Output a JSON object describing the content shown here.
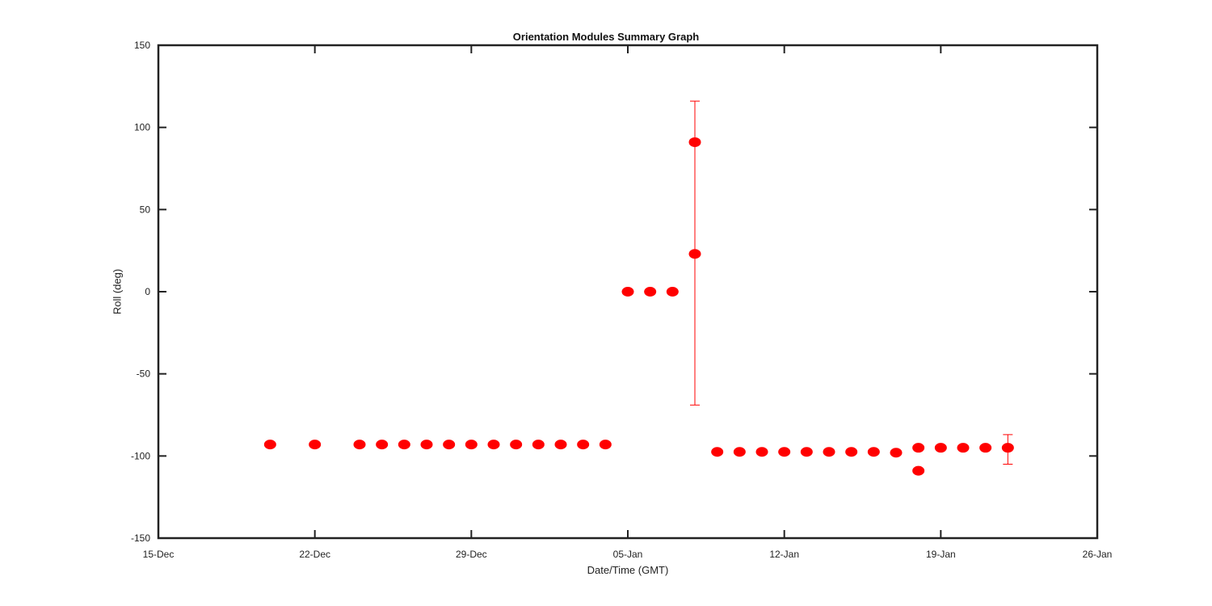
{
  "chart_data": {
    "type": "scatter",
    "title": "Orientation Modules Summary Graph",
    "xlabel": "Date/Time (GMT)",
    "ylabel": "Roll (deg)",
    "x_ticks": [
      "15-Dec",
      "22-Dec",
      "29-Dec",
      "05-Jan",
      "12-Jan",
      "19-Jan",
      "26-Jan"
    ],
    "x_range": [
      "15-Dec",
      "26-Jan"
    ],
    "y_ticks": [
      "150",
      "100",
      "50",
      "0",
      "-50",
      "-100",
      "-150"
    ],
    "ylim": [
      -150,
      150
    ],
    "grid": false,
    "marker_color": "#ff0000",
    "series": [
      {
        "x": [
          "20-Dec",
          "22-Dec",
          "24-Dec",
          "25-Dec",
          "26-Dec",
          "27-Dec",
          "28-Dec",
          "29-Dec",
          "30-Dec",
          "31-Dec",
          "01-Jan",
          "02-Jan",
          "03-Jan",
          "04-Jan",
          "05-Jan",
          "06-Jan",
          "07-Jan",
          "08-Jan",
          "08-Jan",
          "09-Jan",
          "10-Jan",
          "11-Jan",
          "12-Jan",
          "13-Jan",
          "14-Jan",
          "15-Jan",
          "16-Jan",
          "17-Jan",
          "18-Jan",
          "18-Jan",
          "19-Jan",
          "20-Jan",
          "21-Jan",
          "22-Jan"
        ],
        "y": [
          -93,
          -93,
          -93,
          -93,
          -93,
          -93,
          -93,
          -93,
          -93,
          -93,
          -93,
          -93,
          -93,
          -93,
          0,
          0,
          0,
          91,
          23,
          -97.5,
          -97.5,
          -97.5,
          -97.5,
          -97.5,
          -97.5,
          -97.5,
          -97.5,
          -98,
          -109,
          -95,
          -95,
          -95,
          -95,
          -95
        ]
      }
    ],
    "error_bars": [
      {
        "x": "08-Jan",
        "y_low": -69,
        "y_high": 116
      },
      {
        "x": "22-Jan",
        "y_low": -105,
        "y_high": -87
      }
    ]
  }
}
